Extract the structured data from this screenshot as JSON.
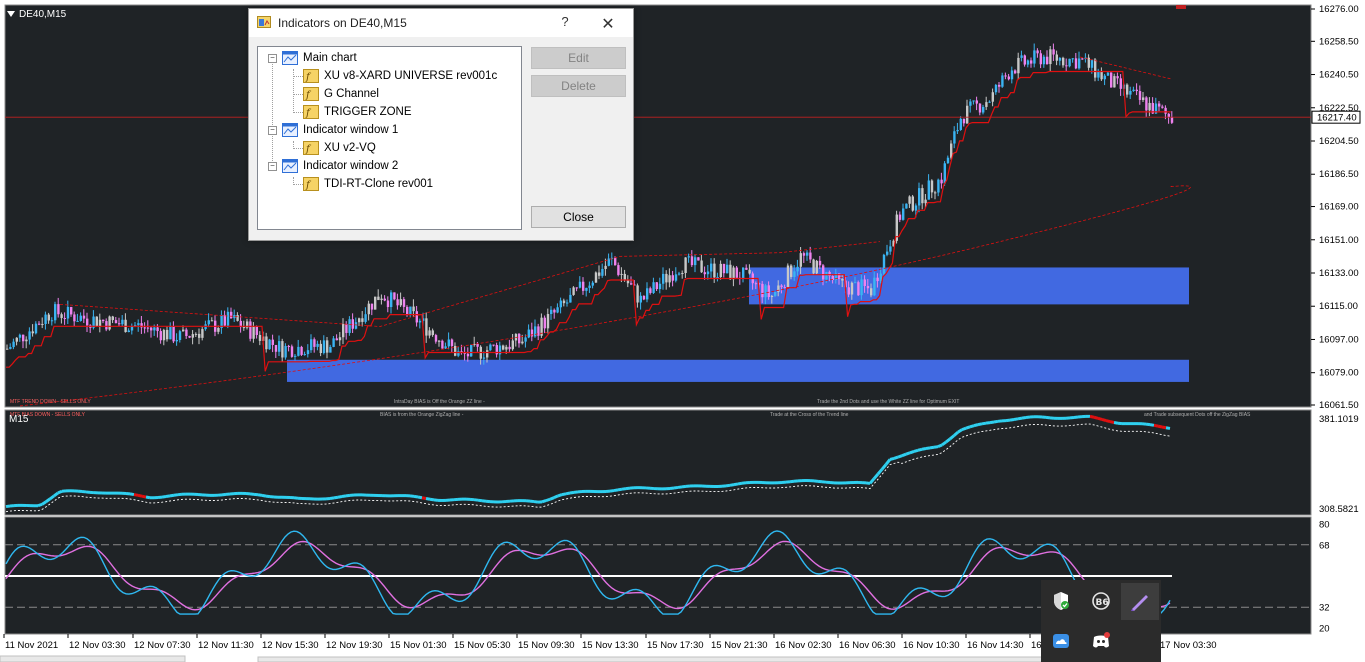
{
  "chart": {
    "symbol": "DE40,M15",
    "price_axis": [
      "16276.00",
      "16258.50",
      "16240.50",
      "16222.50",
      "16204.50",
      "16186.50",
      "16169.00",
      "16151.00",
      "16133.00",
      "16115.00",
      "16097.00",
      "16079.00",
      "16061.50"
    ],
    "current_price": "16217.40",
    "annotations": {
      "main_left": "MTF TREND DOWN - SELLS ONLY",
      "main_mid1": "IntraDay BIAS is Off the Orange ZZ line -",
      "main_mid2": "Trade the 2nd Dots and use the White ZZ line for Optimum EXIT",
      "sub1_left": "MTF BIAS DOWN - SELLS ONLY",
      "sub1_mid1": "BIAS is from the Orange ZigZag line -",
      "sub1_mid2": "Trade at the Cross of the Trend line",
      "sub1_right": "and Trade subsequent Dots off the ZigZag BIAS"
    },
    "subwindow1": {
      "label": "M15",
      "axis_top": "381.1019",
      "axis_bottom": "308.5821"
    },
    "subwindow2": {
      "axis": [
        "80",
        "68",
        "32",
        "20"
      ]
    },
    "time_axis": [
      "11 Nov 2021",
      "12 Nov 03:30",
      "12 Nov 07:30",
      "12 Nov 11:30",
      "12 Nov 15:30",
      "12 Nov 19:30",
      "15 Nov 01:30",
      "15 Nov 05:30",
      "15 Nov 09:30",
      "15 Nov 13:30",
      "15 Nov 17:30",
      "15 Nov 21:30",
      "16 Nov 02:30",
      "16 Nov 06:30",
      "16 Nov 10:30",
      "16 Nov 14:30",
      "16",
      "17 Nov 03:30"
    ]
  },
  "dialog": {
    "title": "Indicators on DE40,M15",
    "help": "?",
    "close": "✕",
    "tree": {
      "main_chart": "Main chart",
      "main_items": [
        "XU v8-XARD UNIVERSE rev001c",
        "G Channel",
        "TRIGGER ZONE"
      ],
      "window1": "Indicator window 1",
      "window1_items": [
        "XU v2-VQ"
      ],
      "window2": "Indicator window 2",
      "window2_items": [
        "TDI-RT-Clone rev001"
      ]
    },
    "buttons": {
      "edit": "Edit",
      "delete": "Delete",
      "close": "Close"
    }
  },
  "tray": {
    "icons": [
      "security-shield-icon",
      "bb-app-icon",
      "pen-app-icon",
      "onedrive-icon",
      "discord-icon"
    ]
  },
  "colors": {
    "background": "#1f2326",
    "bull": "#3ab4f2",
    "bear": "#ee82ee",
    "neutral": "#c8c8c8",
    "channel": "#e01010",
    "zone": "#4169e1",
    "vq_up": "#2fd0f0",
    "vq_down": "#e01010",
    "tdi_fast": "#2fb8f0",
    "tdi_slow": "#e070e0"
  }
}
